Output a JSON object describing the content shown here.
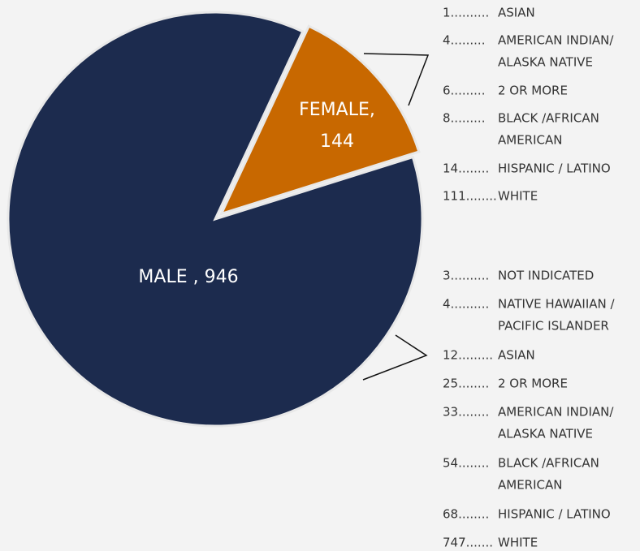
{
  "chart_data": {
    "type": "pie",
    "values": [
      946,
      144
    ],
    "value_labels": [
      "MALE , 946",
      "FEMALE, 144"
    ],
    "colors": [
      "#1c2b4e",
      "#c86800"
    ],
    "annotations": [
      [
        {
          "lead": "1..........",
          "lines": [
            "ASIAN"
          ]
        },
        {
          "lead": "4.........",
          "lines": [
            "AMERICAN INDIAN/",
            "ALASKA NATIVE"
          ]
        },
        {
          "lead": "6.........",
          "lines": [
            "2 OR MORE"
          ]
        },
        {
          "lead": "8.........",
          "lines": [
            "BLACK /AFRICAN",
            "AMERICAN"
          ]
        },
        {
          "lead": "14........",
          "lines": [
            "HISPANIC / LATINO"
          ]
        },
        {
          "lead": "111........",
          "lines": [
            "WHITE"
          ]
        }
      ],
      [
        {
          "lead": "3..........",
          "lines": [
            "NOT INDICATED"
          ]
        },
        {
          "lead": "4..........",
          "lines": [
            "NATIVE HAWAIIAN /",
            "PACIFIC ISLANDER"
          ]
        },
        {
          "lead": "12.........",
          "lines": [
            "ASIAN"
          ]
        },
        {
          "lead": "25........",
          "lines": [
            "2 OR MORE"
          ]
        },
        {
          "lead": "33........",
          "lines": [
            "AMERICAN INDIAN/",
            "ALASKA NATIVE"
          ]
        },
        {
          "lead": "54........",
          "lines": [
            "BLACK /AFRICAN",
            "AMERICAN"
          ]
        },
        {
          "lead": "68........",
          "lines": [
            "HISPANIC / LATINO"
          ]
        },
        {
          "lead": "747.......",
          "lines": [
            "WHITE"
          ]
        }
      ]
    ]
  }
}
